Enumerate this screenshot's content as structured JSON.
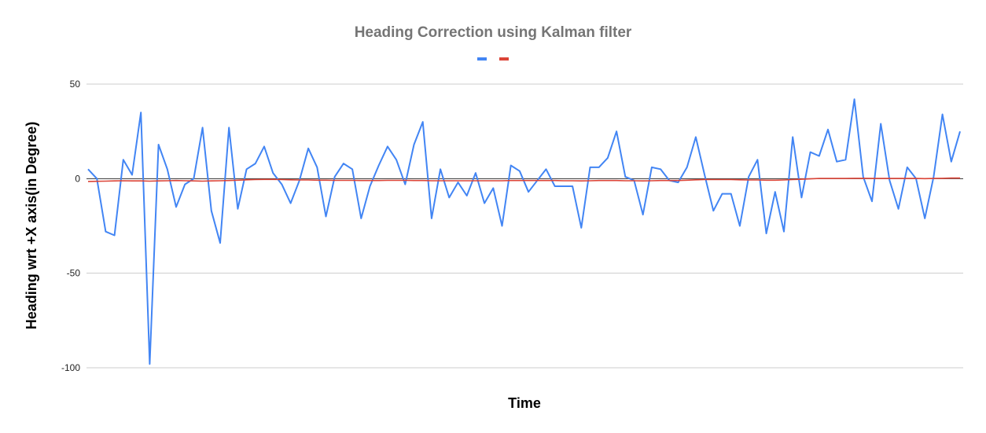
{
  "chart_data": {
    "type": "line",
    "title": "Heading Correction using Kalman filter",
    "xlabel": "Time",
    "ylabel": "Heading wrt +X axis(in Degree)",
    "ylim": [
      -100,
      50
    ],
    "yticks": [
      50,
      0,
      -50,
      -100
    ],
    "grid": true,
    "legend_position": "top",
    "series": [
      {
        "color": "#4285F4",
        "values": [
          5,
          0,
          -28,
          -30,
          10,
          2,
          35,
          -98,
          18,
          5,
          -15,
          -3,
          0,
          27,
          -17,
          -34,
          27,
          -16,
          5,
          8,
          17,
          3,
          -3,
          -13,
          -1,
          16,
          6,
          -20,
          1,
          8,
          5,
          -21,
          -4,
          7,
          17,
          10,
          -3,
          18,
          30,
          -21,
          5,
          -10,
          -2,
          -9,
          3,
          -13,
          -5,
          -25,
          7,
          4,
          -7,
          -1,
          5,
          -4,
          -4,
          -4,
          -26,
          6,
          6,
          11,
          25,
          1,
          -1,
          -19,
          6,
          5,
          -1,
          -2,
          6,
          22,
          2,
          -17,
          -8,
          -8,
          -25,
          1,
          10,
          -29,
          -7,
          -28,
          22,
          -10,
          14,
          12,
          26,
          9,
          10,
          42,
          1,
          -12,
          29,
          -1,
          -16,
          6,
          0,
          -21,
          1,
          34,
          9,
          25
        ]
      },
      {
        "color": "#DB4437",
        "values": [
          -1.5,
          -1.4,
          -1.3,
          -1.2,
          -1.1,
          -1.2,
          -1.2,
          -1.3,
          -1.2,
          -1.1,
          -1.0,
          -1.1,
          -1.2,
          -1.3,
          -1.2,
          -1.1,
          -1.0,
          -0.8,
          -0.6,
          -0.5,
          -0.4,
          -0.4,
          -0.5,
          -0.6,
          -0.7,
          -0.7,
          -0.8,
          -0.8,
          -0.9,
          -0.9,
          -0.9,
          -1.0,
          -1.0,
          -1.0,
          -0.9,
          -0.9,
          -0.9,
          -1.0,
          -1.0,
          -1.1,
          -1.1,
          -1.1,
          -1.1,
          -1.1,
          -1.1,
          -1.1,
          -1.1,
          -1.1,
          -1.0,
          -1.0,
          -1.0,
          -1.0,
          -1.0,
          -1.0,
          -1.1,
          -1.1,
          -1.2,
          -1.1,
          -1.0,
          -1.0,
          -1.0,
          -1.1,
          -1.1,
          -1.2,
          -1.1,
          -1.0,
          -1.0,
          -1.0,
          -0.8,
          -0.6,
          -0.5,
          -0.5,
          -0.5,
          -0.5,
          -0.6,
          -0.7,
          -0.7,
          -0.8,
          -0.8,
          -0.7,
          -0.5,
          -0.3,
          -0.1,
          0.1,
          0.1,
          0.1,
          0.1,
          0.2,
          0.2,
          0.1,
          0.1,
          0.1,
          0.1,
          0.1,
          0.1,
          0.0,
          0.1,
          0.2,
          0.3,
          0.3
        ]
      }
    ]
  }
}
